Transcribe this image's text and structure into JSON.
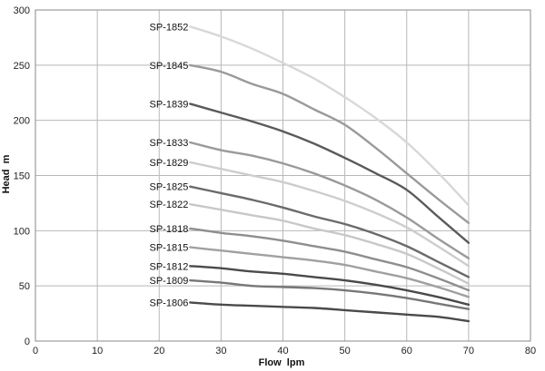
{
  "chart_data": {
    "type": "line",
    "xlabel": "Flow  lpm",
    "ylabel": "Head  m",
    "xlim": [
      0,
      80
    ],
    "ylim": [
      0,
      300
    ],
    "xticks": [
      0,
      10,
      20,
      30,
      40,
      50,
      60,
      70,
      80
    ],
    "yticks": [
      0,
      50,
      100,
      150,
      200,
      250,
      300
    ],
    "grid": true,
    "legend": "inline labels at left end of each curve",
    "series": [
      {
        "name": "SP-1852",
        "color": "#d8d8d8",
        "x": [
          25,
          30,
          35,
          40,
          45,
          50,
          55,
          60,
          65,
          70
        ],
        "y": [
          285,
          276,
          265,
          252,
          238,
          221,
          202,
          180,
          153,
          123
        ]
      },
      {
        "name": "SP-1845",
        "color": "#9a9a9a",
        "x": [
          25,
          30,
          35,
          40,
          45,
          50,
          55,
          60,
          65,
          70
        ],
        "y": [
          250,
          244,
          233,
          224,
          210,
          196,
          175,
          152,
          129,
          107
        ]
      },
      {
        "name": "SP-1839",
        "color": "#5a5a5a",
        "x": [
          25,
          30,
          35,
          40,
          45,
          50,
          55,
          60,
          65,
          70
        ],
        "y": [
          215,
          207,
          199,
          190,
          179,
          166,
          152,
          137,
          113,
          89
        ]
      },
      {
        "name": "SP-1833",
        "color": "#9a9a9a",
        "x": [
          25,
          30,
          35,
          40,
          45,
          50,
          55,
          60,
          65,
          70
        ],
        "y": [
          180,
          173,
          168,
          161,
          152,
          141,
          128,
          112,
          93,
          75
        ]
      },
      {
        "name": "SP-1829",
        "color": "#cdcdcd",
        "x": [
          25,
          30,
          35,
          40,
          45,
          50,
          55,
          60,
          65,
          70
        ],
        "y": [
          162,
          156,
          150,
          144,
          136,
          127,
          116,
          103,
          86,
          68
        ]
      },
      {
        "name": "SP-1825",
        "color": "#6a6a6a",
        "x": [
          25,
          30,
          35,
          40,
          45,
          50,
          55,
          60,
          65,
          70
        ],
        "y": [
          140,
          134,
          128,
          121,
          113,
          106,
          97,
          86,
          72,
          58
        ]
      },
      {
        "name": "SP-1822",
        "color": "#c8c8c8",
        "x": [
          25,
          30,
          35,
          40,
          45,
          50,
          55,
          60,
          65,
          70
        ],
        "y": [
          124,
          119,
          114,
          109,
          102,
          96,
          88,
          79,
          66,
          52
        ]
      },
      {
        "name": "SP-1818",
        "color": "#8e8e8e",
        "x": [
          25,
          30,
          35,
          40,
          45,
          50,
          55,
          60,
          65,
          70
        ],
        "y": [
          102,
          98,
          95,
          91,
          86,
          81,
          74,
          67,
          57,
          46
        ]
      },
      {
        "name": "SP-1815",
        "color": "#a0a0a0",
        "x": [
          25,
          30,
          35,
          40,
          45,
          50,
          55,
          60,
          65,
          70
        ],
        "y": [
          85,
          82,
          79,
          76,
          73,
          69,
          63,
          57,
          49,
          40
        ]
      },
      {
        "name": "SP-1812",
        "color": "#4a4a4a",
        "x": [
          25,
          30,
          35,
          40,
          45,
          50,
          55,
          60,
          65,
          70
        ],
        "y": [
          68,
          66,
          63,
          61,
          58,
          55,
          51,
          46,
          40,
          33
        ]
      },
      {
        "name": "SP-1809",
        "color": "#777777",
        "x": [
          25,
          30,
          35,
          40,
          45,
          50,
          55,
          60,
          65,
          70
        ],
        "y": [
          55,
          53,
          50,
          49,
          48,
          46,
          43,
          39,
          34,
          29
        ]
      },
      {
        "name": "SP-1806",
        "color": "#4a4a4a",
        "x": [
          25,
          30,
          35,
          40,
          45,
          50,
          55,
          60,
          65,
          70
        ],
        "y": [
          35,
          33,
          32,
          31,
          30,
          28,
          26,
          24,
          22,
          18
        ]
      }
    ]
  }
}
